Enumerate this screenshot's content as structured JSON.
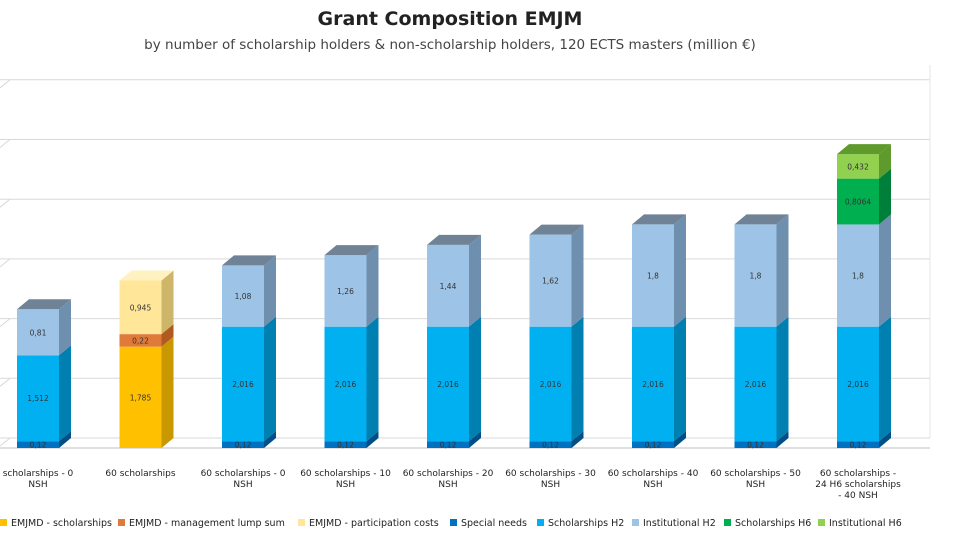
{
  "chart_data": {
    "type": "bar",
    "stacked": true,
    "three_d": true,
    "title": "Grant Composition EMJM",
    "subtitle": "by number of scholarship holders & non-scholarship holders, 120 ECTS masters (million €)",
    "xlabel": "",
    "ylabel": "",
    "ylim": [
      0,
      5.6
    ],
    "grid": true,
    "legend_position": "bottom",
    "categories": [
      [
        "scholarships - 0",
        "NSH"
      ],
      [
        "60 scholarships"
      ],
      [
        "60 scholarships - 0",
        "NSH"
      ],
      [
        "60 scholarships - 10",
        "NSH"
      ],
      [
        "60 scholarships - 20",
        "NSH"
      ],
      [
        "60 scholarships - 30",
        "NSH"
      ],
      [
        "60 scholarships - 40",
        "NSH"
      ],
      [
        "60 scholarships - 50",
        "NSH"
      ],
      [
        "60 scholarships -",
        "24 H6 scholarships",
        "- 40 NSH"
      ]
    ],
    "series": [
      {
        "name": "EMJMD - scholarships",
        "color": "#FFC000",
        "side": "#C99700",
        "top": "#FFD966",
        "values": [
          0,
          1.785,
          0,
          0,
          0,
          0,
          0,
          0,
          0
        ],
        "labels": [
          "",
          "1,785",
          "",
          "",
          "",
          "",
          "",
          "",
          ""
        ]
      },
      {
        "name": "EMJMD - management lump sum",
        "color": "#E07A3A",
        "side": "#B05A20",
        "top": "#F0A070",
        "values": [
          0,
          0.22,
          0,
          0,
          0,
          0,
          0,
          0,
          0
        ],
        "labels": [
          "",
          "0,22",
          "",
          "",
          "",
          "",
          "",
          "",
          ""
        ]
      },
      {
        "name": "EMJMD - participation costs",
        "color": "#FFE699",
        "side": "#CDB56A",
        "top": "#FFF2C0",
        "values": [
          0,
          0.945,
          0,
          0,
          0,
          0,
          0,
          0,
          0
        ],
        "labels": [
          "",
          "0,945",
          "",
          "",
          "",
          "",
          "",
          "",
          ""
        ]
      },
      {
        "name": "Special needs",
        "color": "#0070C0",
        "side": "#004F88",
        "top": "#3D8FD0",
        "values": [
          0.12,
          0,
          0.12,
          0.12,
          0.12,
          0.12,
          0.12,
          0.12,
          0.12
        ],
        "labels": [
          "0,12",
          "",
          "0,12",
          "0,12",
          "0,12",
          "0,12",
          "0,12",
          "0,12",
          "0,12"
        ]
      },
      {
        "name": "Scholarships H2",
        "color": "#00B0F0",
        "side": "#0080B0",
        "top": "#4FC8F4",
        "values": [
          1.512,
          0,
          2.016,
          2.016,
          2.016,
          2.016,
          2.016,
          2.016,
          2.016
        ],
        "labels": [
          "1,512",
          "",
          "2,016",
          "2,016",
          "2,016",
          "2,016",
          "2,016",
          "2,016",
          "2,016"
        ]
      },
      {
        "name": "Institutional H2",
        "color": "#9DC3E6",
        "side": "#6F8FAE",
        "top": "#BCD6EE",
        "values": [
          0.81,
          0,
          1.08,
          1.26,
          1.44,
          1.62,
          1.8,
          1.8,
          1.8
        ],
        "labels": [
          "0,81",
          "",
          "1,08",
          "1,26",
          "1,44",
          "1,62",
          "1,8",
          "1,8",
          "1,8"
        ]
      },
      {
        "name": "Scholarships H6",
        "color": "#00B050",
        "side": "#007F3A",
        "top": "#4CC880",
        "values": [
          0,
          0,
          0,
          0,
          0,
          0,
          0,
          0,
          0.8064
        ],
        "labels": [
          "",
          "",
          "",
          "",
          "",
          "",
          "",
          "",
          "0,8064"
        ]
      },
      {
        "name": "Institutional H6",
        "color": "#92D050",
        "side": "#5F9A2C",
        "top": "#B2E080",
        "values": [
          0,
          0,
          0,
          0,
          0,
          0,
          0,
          0,
          0.432
        ],
        "labels": [
          "",
          "",
          "",
          "",
          "",
          "",
          "",
          "",
          "0,432"
        ]
      }
    ],
    "top_face_color": "#6F8296"
  }
}
